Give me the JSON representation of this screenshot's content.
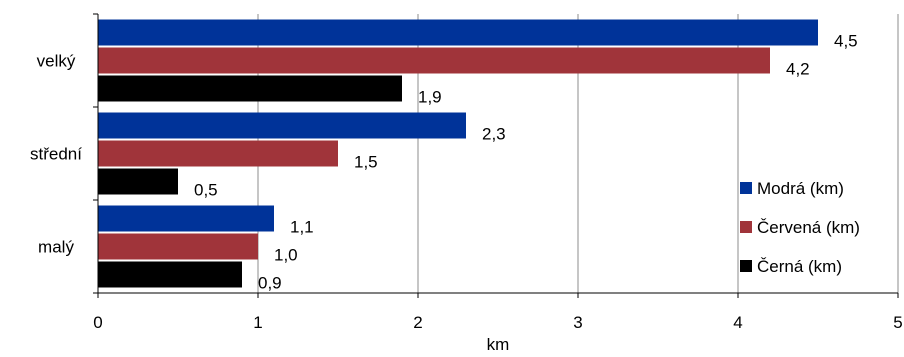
{
  "chart_data": {
    "type": "bar",
    "orientation": "horizontal",
    "categories": [
      "velký",
      "střední",
      "malý"
    ],
    "series": [
      {
        "name": "Modrá (km)",
        "color": "#003399",
        "values": [
          4.5,
          2.3,
          1.1
        ],
        "labels": [
          "4,5",
          "2,3",
          "1,1"
        ]
      },
      {
        "name": "Červená (km)",
        "color": "#A0343A",
        "values": [
          4.2,
          1.5,
          1.0
        ],
        "labels": [
          "4,2",
          "1,5",
          "1,0"
        ]
      },
      {
        "name": "Černá (km)",
        "color": "#000000",
        "values": [
          1.9,
          0.5,
          0.9
        ],
        "labels": [
          "1,9",
          "0,5",
          "0,9"
        ]
      }
    ],
    "xlabel": "km",
    "ylabel": "",
    "xlim": [
      0,
      5
    ],
    "xticks": [
      "0",
      "1",
      "2",
      "3",
      "4",
      "5"
    ],
    "grid": true,
    "legend_position": "right"
  }
}
